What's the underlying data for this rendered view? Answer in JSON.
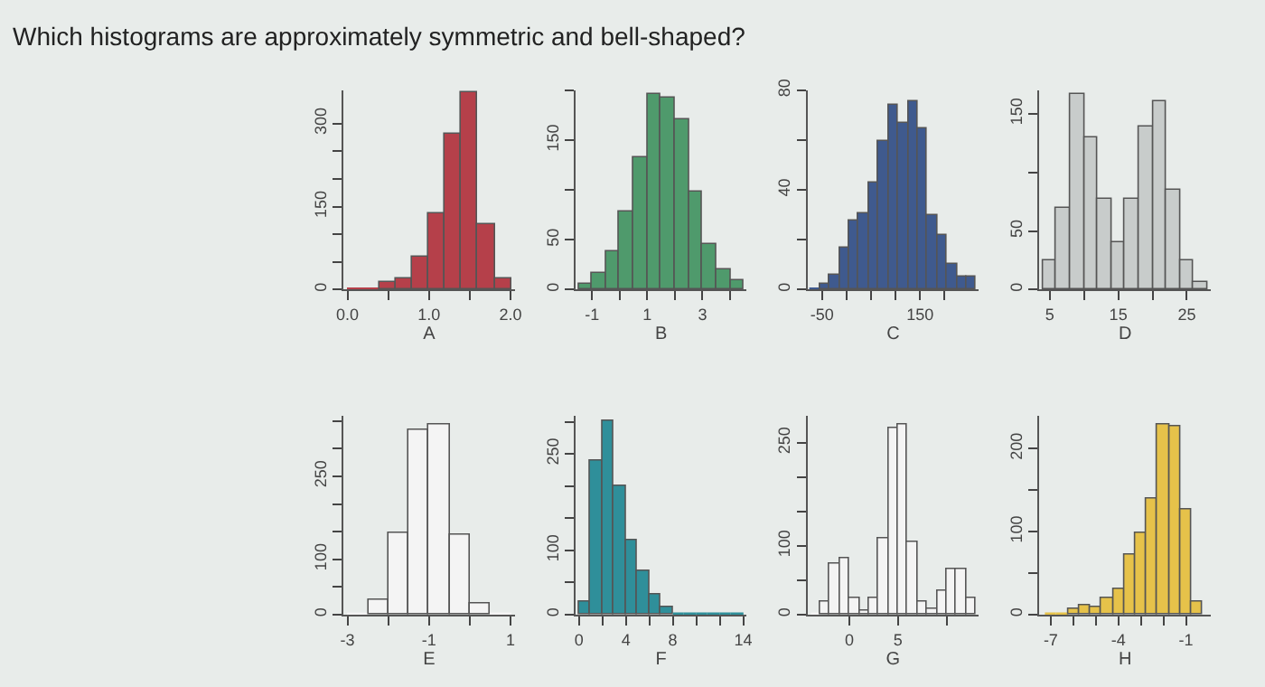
{
  "chart_data": [
    {
      "type": "other",
      "title": "Which histograms are approximately symmetric and bell-shaped?"
    },
    {
      "type": "histogram",
      "xlabel": "A",
      "color": "#b5404a",
      "bins": [
        0,
        0.2,
        0.4,
        0.6,
        0.8,
        1.0,
        1.2,
        1.4,
        1.6,
        1.8,
        2.0
      ],
      "values": [
        4,
        4,
        13,
        21,
        58,
        137,
        280,
        356,
        117,
        19
      ],
      "xlim": [
        -0.05,
        2.05
      ],
      "xticks": [
        {
          "value": 0,
          "label": "0.0"
        },
        {
          "value": 0.5,
          "label": null
        },
        {
          "value": 1,
          "label": "1.0"
        },
        {
          "value": 1.5,
          "label": null
        },
        {
          "value": 2,
          "label": "2.0"
        }
      ],
      "ylim": [
        0,
        360
      ],
      "yticks": [
        0,
        {
          "value": 50,
          "label": null
        },
        {
          "value": 100,
          "label": null
        },
        150,
        {
          "value": 200,
          "label": null
        },
        {
          "value": 250,
          "label": null
        },
        300
      ]
    },
    {
      "type": "histogram",
      "xlabel": "B",
      "color": "#4f9a6c",
      "bins": [
        -1.5,
        -1,
        -0.5,
        0,
        0.5,
        1,
        1.5,
        2,
        2.5,
        3,
        3.5,
        4,
        4.5
      ],
      "values": [
        6,
        16,
        38,
        79,
        133,
        197,
        192,
        171,
        98,
        45,
        21,
        9
      ],
      "xlim": [
        -1.6,
        4.6
      ],
      "xticks": [
        -1,
        {
          "value": 0,
          "label": null
        },
        1,
        {
          "value": 2,
          "label": null
        },
        3,
        {
          "value": 4,
          "label": null
        }
      ],
      "ylim": [
        0,
        200
      ],
      "yticks": [
        0,
        50,
        {
          "value": 100,
          "label": null
        },
        150,
        {
          "value": 200,
          "label": null
        }
      ]
    },
    {
      "type": "histogram",
      "xlabel": "C",
      "color": "#3f5a8e",
      "bins": [
        -75,
        -55,
        -35,
        -15,
        5,
        25,
        45,
        65,
        85,
        105,
        125,
        145,
        165,
        185,
        205,
        225,
        245,
        265
      ],
      "values": [
        1,
        2,
        6,
        17,
        28,
        31,
        43,
        60,
        74,
        67,
        76,
        65,
        30,
        22,
        10,
        5,
        5
      ],
      "xlim": [
        -80,
        270
      ],
      "xticks": [
        -50,
        {
          "value": 0,
          "label": null
        },
        {
          "value": 50,
          "label": null
        },
        {
          "value": 100,
          "label": null
        },
        150,
        {
          "value": 200,
          "label": null
        }
      ],
      "ylim": [
        0,
        80
      ],
      "yticks": [
        0,
        {
          "value": 20,
          "label": null
        },
        40,
        {
          "value": 60,
          "label": null
        },
        80
      ]
    },
    {
      "type": "histogram",
      "xlabel": "D",
      "color": "#c8cccb",
      "bins": [
        4,
        6,
        8,
        10,
        12,
        14,
        16,
        18,
        20,
        22,
        24,
        26,
        28
      ],
      "values": [
        25,
        70,
        167,
        130,
        78,
        41,
        77,
        139,
        161,
        85,
        25,
        6
      ],
      "xlim": [
        3.5,
        28.5
      ],
      "xticks": [
        5,
        {
          "value": 10,
          "label": null
        },
        15,
        {
          "value": 20,
          "label": null
        },
        25
      ],
      "ylim": [
        0,
        170
      ],
      "yticks": [
        0,
        50,
        {
          "value": 100,
          "label": null
        },
        150
      ]
    },
    {
      "type": "histogram",
      "xlabel": "E",
      "color": "#f4f4f4",
      "bins": [
        -3,
        -2.5,
        -2,
        -1.5,
        -1,
        -0.5,
        0,
        0.5,
        1
      ],
      "values": [
        3,
        27,
        148,
        334,
        345,
        145,
        21,
        4
      ],
      "xlim": [
        -3.1,
        1.1
      ],
      "xticks": [
        -3,
        {
          "value": -2,
          "label": null
        },
        -1,
        {
          "value": 0,
          "label": null
        },
        1
      ],
      "ylim": [
        0,
        360
      ],
      "yticks": [
        0,
        {
          "value": 50,
          "label": null
        },
        100,
        {
          "value": 150,
          "label": null
        },
        {
          "value": 200,
          "label": null
        },
        250,
        {
          "value": 300,
          "label": null
        },
        {
          "value": 350,
          "label": null
        }
      ]
    },
    {
      "type": "histogram",
      "xlabel": "F",
      "color": "#2f8f9a",
      "bins": [
        0,
        1,
        2,
        3,
        4,
        5,
        6,
        7,
        8,
        9,
        10,
        11,
        12,
        13,
        14
      ],
      "values": [
        20,
        240,
        302,
        200,
        117,
        67,
        32,
        12,
        4,
        4,
        3,
        1,
        1,
        1
      ],
      "xlim": [
        -0.3,
        14.3
      ],
      "xticks": [
        0,
        {
          "value": 2,
          "label": null
        },
        4,
        {
          "value": 6,
          "label": null
        },
        8,
        {
          "value": 10,
          "label": null
        },
        {
          "value": 12,
          "label": null
        },
        14
      ],
      "ylim": [
        0,
        310
      ],
      "yticks": [
        0,
        {
          "value": 50,
          "label": null
        },
        100,
        {
          "value": 150,
          "label": null
        },
        {
          "value": 200,
          "label": null
        },
        250,
        {
          "value": 300,
          "label": null
        }
      ]
    },
    {
      "type": "histogram",
      "xlabel": "G",
      "color": "#f4f4f4",
      "bins": [
        -4,
        -3,
        -2,
        -1,
        0,
        1,
        2,
        3,
        4,
        5,
        6,
        7,
        8,
        9,
        10,
        11,
        12,
        13
      ],
      "values": [
        2,
        18,
        75,
        82,
        25,
        6,
        23,
        111,
        271,
        277,
        107,
        18,
        9,
        35,
        66,
        66,
        25
      ],
      "xlim": [
        -4.3,
        13.3
      ],
      "xticks": [
        0,
        5,
        {
          "value": 10,
          "label": null
        }
      ],
      "ylim": [
        0,
        290
      ],
      "yticks": [
        0,
        {
          "value": 50,
          "label": null
        },
        100,
        {
          "value": 150,
          "label": null
        },
        {
          "value": 200,
          "label": null
        },
        250
      ]
    },
    {
      "type": "histogram",
      "xlabel": "H",
      "color": "#e6c24a",
      "bins": [
        -7.25,
        -6.75,
        -6.25,
        -5.75,
        -5.25,
        -4.75,
        -4.25,
        -3.75,
        -3.25,
        -2.75,
        -2.25,
        -1.75,
        -1.25,
        -0.75,
        -0.25
      ],
      "values": [
        3,
        3,
        6,
        11,
        9,
        20,
        30,
        72,
        99,
        139,
        230,
        228,
        127,
        15
      ],
      "xlim": [
        -7.5,
        0.1
      ],
      "xticks": [
        -7,
        {
          "value": -6,
          "label": null
        },
        {
          "value": -5,
          "label": null
        },
        -4,
        {
          "value": -3,
          "label": null
        },
        {
          "value": -2,
          "label": null
        },
        -1
      ],
      "ylim": [
        0,
        240
      ],
      "yticks": [
        0,
        {
          "value": 50,
          "label": null
        },
        100,
        {
          "value": 150,
          "label": null
        },
        200
      ]
    }
  ]
}
